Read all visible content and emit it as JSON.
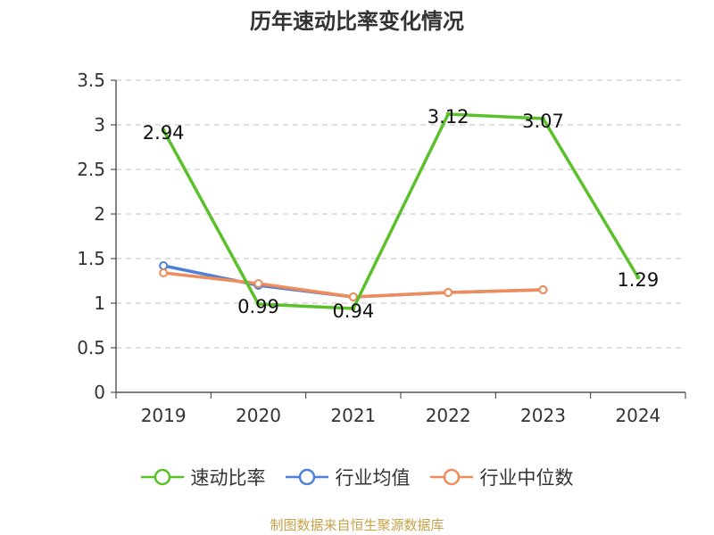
{
  "chart_data": {
    "type": "line",
    "title": "历年速动比率变化情况",
    "categories": [
      "2019",
      "2020",
      "2021",
      "2022",
      "2023",
      "2024"
    ],
    "yticks": [
      "0",
      "0.5",
      "1",
      "1.5",
      "2",
      "2.5",
      "3",
      "3.5"
    ],
    "ylim": [
      0,
      3.5
    ],
    "grid": true,
    "legend_position": "bottom",
    "series": [
      {
        "name": "速动比率",
        "color": "#5ac12a",
        "values": [
          2.94,
          0.99,
          0.94,
          3.12,
          3.07,
          1.29
        ],
        "labels": [
          "2.94",
          "0.99",
          "0.94",
          "3.12",
          "3.07",
          "1.29"
        ]
      },
      {
        "name": "行业均值",
        "color": "#4f7fd9",
        "values": [
          1.42,
          1.2,
          1.07,
          1.12,
          1.15,
          null
        ]
      },
      {
        "name": "行业中位数",
        "color": "#f08c5a",
        "values": [
          1.34,
          1.22,
          1.07,
          1.12,
          1.15,
          null
        ]
      }
    ]
  },
  "source": "制图数据来自恒生聚源数据库"
}
